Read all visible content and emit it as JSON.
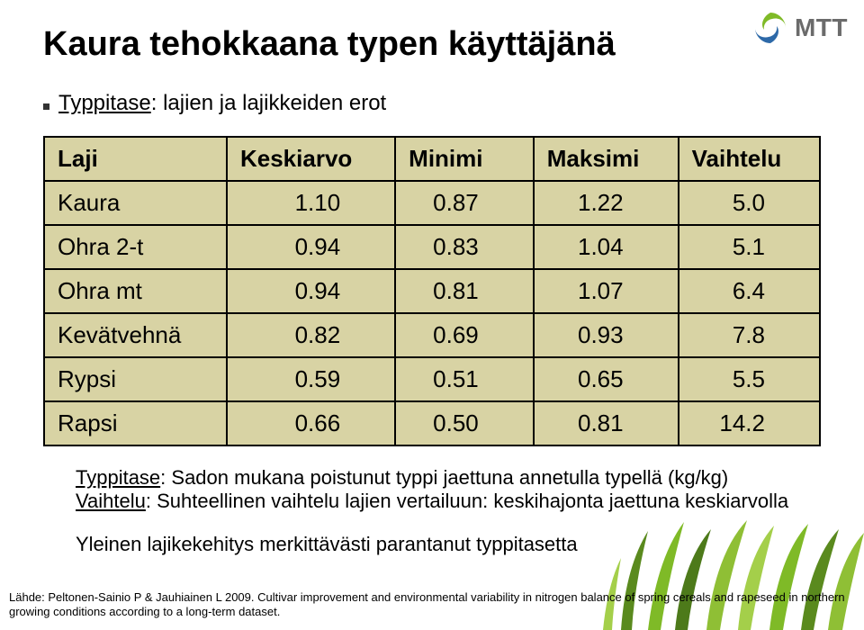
{
  "title": "Kaura tehokkaana typen käyttäjänä",
  "bullet": {
    "underlined": "Typpitase",
    "rest": ": lajien ja lajikkeiden erot"
  },
  "table": {
    "headers": [
      "Laji",
      "Keskiarvo",
      "Minimi",
      "Maksimi",
      "Vaihtelu"
    ],
    "rows": [
      [
        "Kaura",
        "1.10",
        "0.87",
        "1.22",
        "5.0"
      ],
      [
        "Ohra 2-t",
        "0.94",
        "0.83",
        "1.04",
        "5.1"
      ],
      [
        "Ohra mt",
        "0.94",
        "0.81",
        "1.07",
        "6.4"
      ],
      [
        "Kevätvehnä",
        "0.82",
        "0.69",
        "0.93",
        "7.8"
      ],
      [
        "Rypsi",
        "0.59",
        "0.51",
        "0.65",
        "5.5"
      ],
      [
        "Rapsi",
        "0.66",
        "0.50",
        "0.81",
        "14.2"
      ]
    ],
    "header_bg": "#d8d3a4",
    "row_bg": "#d8d3a4",
    "border_color": "#000000",
    "font_size": 26
  },
  "notes": {
    "line1_u1": "Typpitase",
    "line1_mid": ": Sadon mukana poistunut typpi jaettuna annetulla typellä (kg/kg)",
    "line2_u": "Vaihtelu",
    "line2_rest": ": Suhteellinen vaihtelu lajien vertailuun: keskihajonta jaettuna keskiarvolla",
    "line3": "Yleinen lajikekehitys merkittävästi parantanut typpitasetta"
  },
  "source": {
    "prefix": "Lähde: Peltonen-Sainio P & Jauhiainen L 2009. ",
    "rest": "Cultivar improvement and environmental variability in nitrogen balance of spring cereals and rapeseed in northern growing conditions according to a long-term dataset."
  },
  "logo": {
    "text": "MTT",
    "swirl_green": "#7fba27",
    "swirl_blue": "#2d69a8",
    "text_color": "#6b6b6b"
  },
  "grass": {
    "colors": [
      "#5a8a1e",
      "#7fba27",
      "#a4cf4a",
      "#4d7a1a",
      "#8fbf35"
    ]
  }
}
